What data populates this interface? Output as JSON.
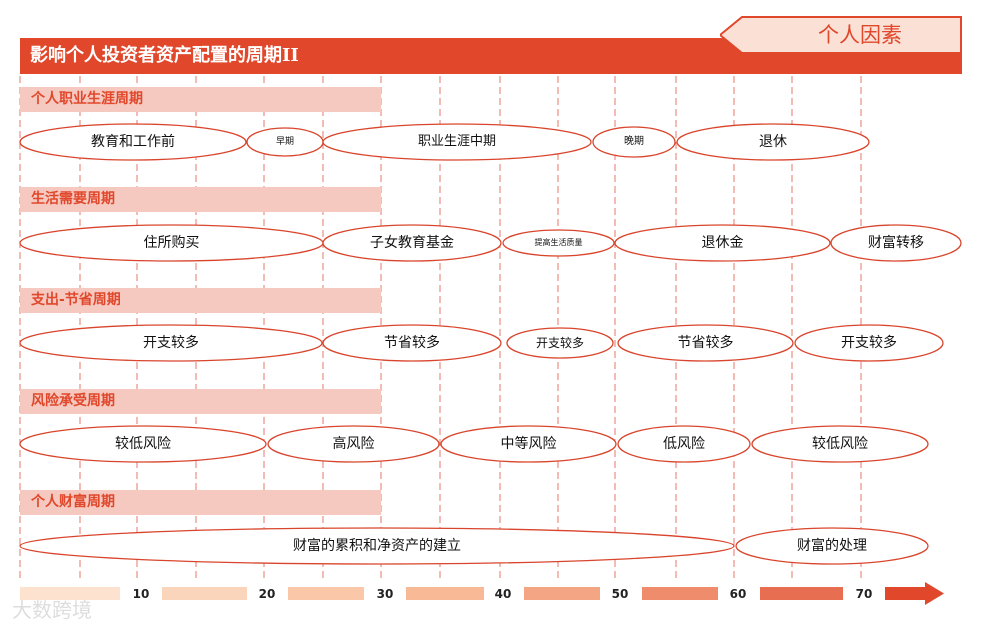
{
  "header": {
    "title": "影响个人投资者资产配置的周期II",
    "tag": "个人因素"
  },
  "sections": [
    {
      "label": "个人职业生涯周期",
      "ovals": [
        {
          "label": "教育和工作前"
        },
        {
          "label": "早期"
        },
        {
          "label": "职业生涯中期"
        },
        {
          "label": "晚期"
        },
        {
          "label": "退休"
        }
      ]
    },
    {
      "label": "生活需要周期",
      "ovals": [
        {
          "label": "住所购买"
        },
        {
          "label": "子女教育基金"
        },
        {
          "label": "提高生活质量"
        },
        {
          "label": "退休金"
        },
        {
          "label": "财富转移"
        }
      ]
    },
    {
      "label": "支出-节省周期",
      "ovals": [
        {
          "label": "开支较多"
        },
        {
          "label": "节省较多"
        },
        {
          "label": "开支较多"
        },
        {
          "label": "节省较多"
        },
        {
          "label": "开支较多"
        }
      ]
    },
    {
      "label": "风险承受周期",
      "ovals": [
        {
          "label": "较低风险"
        },
        {
          "label": "高风险"
        },
        {
          "label": "中等风险"
        },
        {
          "label": "低风险"
        },
        {
          "label": "较低风险"
        }
      ]
    },
    {
      "label": "个人财富周期",
      "ovals": [
        {
          "label": "财富的累积和净资产的建立"
        },
        {
          "label": "财富的处理"
        }
      ]
    }
  ],
  "axis": {
    "ticks": [
      "10",
      "20",
      "30",
      "40",
      "50",
      "60",
      "70"
    ]
  },
  "watermark": "大数跨境",
  "colors": {
    "accent": "#e0472b",
    "band": "#f6c9c0",
    "dash": "#e57a68",
    "oval_stroke": "#d9452c"
  }
}
